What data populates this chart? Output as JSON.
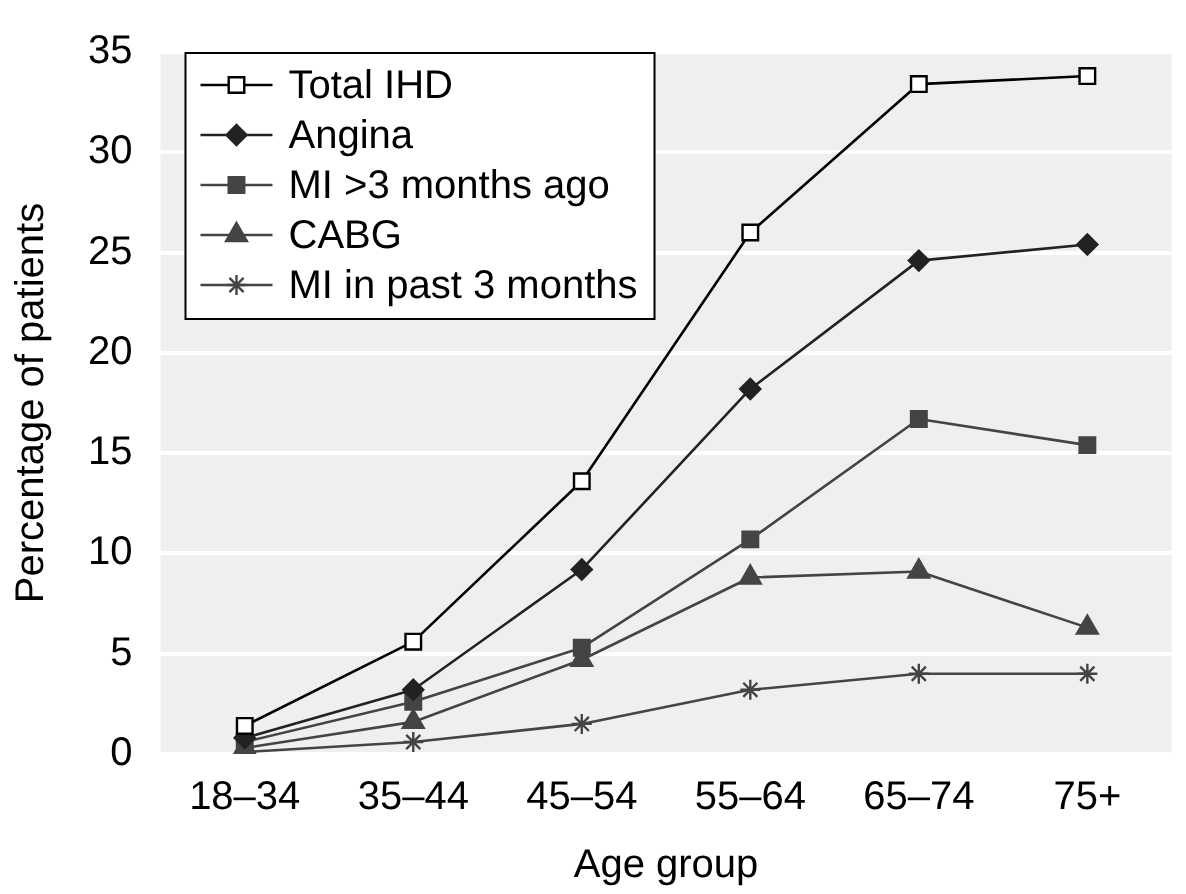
{
  "chart_data": {
    "type": "line",
    "xlabel": "Age group",
    "ylabel": "Percentage of patients",
    "categories": [
      "18–34",
      "35–44",
      "45–54",
      "55–64",
      "65–74",
      "75+"
    ],
    "ylim": [
      0,
      35
    ],
    "yticks": [
      0,
      5,
      10,
      15,
      20,
      25,
      30,
      35
    ],
    "grid": "y",
    "legend": "top left",
    "series": [
      {
        "name": "Total IHD",
        "color": "#000000",
        "marker": "square",
        "values": [
          1.4,
          5.6,
          13.6,
          26.0,
          33.4,
          33.8
        ]
      },
      {
        "name": "Angina",
        "color": "#222222",
        "marker": "diamond",
        "values": [
          0.8,
          3.2,
          9.2,
          18.2,
          24.6,
          25.4
        ]
      },
      {
        "name": "MI >3 months ago",
        "color": "#444444",
        "marker": "square",
        "values": [
          0.6,
          2.6,
          5.3,
          10.7,
          16.7,
          15.4
        ]
      },
      {
        "name": "CABG",
        "color": "#444444",
        "marker": "triangle",
        "values": [
          0.3,
          1.6,
          4.7,
          8.8,
          9.1,
          6.3
        ]
      },
      {
        "name": "MI in past 3 months",
        "color": "#444444",
        "marker": "cross",
        "values": [
          0.1,
          0.6,
          1.5,
          3.2,
          4.0,
          4.0
        ]
      }
    ]
  }
}
